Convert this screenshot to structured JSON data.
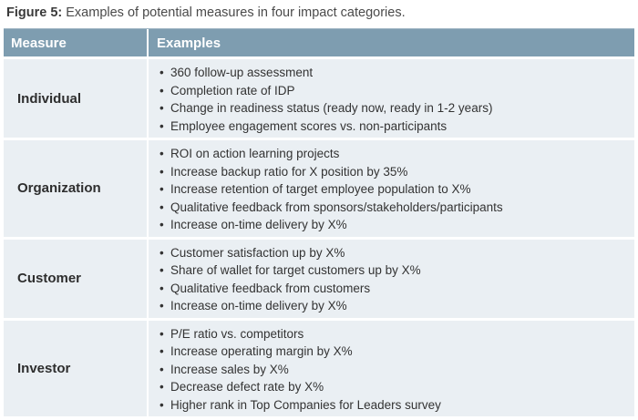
{
  "caption": {
    "label": "Figure 5:",
    "text": " Examples of potential measures in four impact categories."
  },
  "table": {
    "headers": {
      "measure": "Measure",
      "examples": "Examples"
    },
    "bullet": "•",
    "rows": [
      {
        "measure": "Individual",
        "examples": [
          "360 follow-up assessment",
          "Completion rate of IDP",
          "Change in readiness status (ready now, ready in 1-2 years)",
          "Employee engagement scores vs. non-participants"
        ]
      },
      {
        "measure": "Organization",
        "examples": [
          "ROI on action learning projects",
          "Increase backup ratio for X position by 35%",
          "Increase retention of target employee population to X%",
          "Qualitative feedback from sponsors/stakeholders/participants",
          "Increase on-time delivery by X%"
        ]
      },
      {
        "measure": "Customer",
        "examples": [
          "Customer satisfaction up by X%",
          "Share of wallet for target customers up by X%",
          "Qualitative feedback from customers",
          "Increase on-time delivery by X%"
        ]
      },
      {
        "measure": "Investor",
        "examples": [
          "P/E ratio vs. competitors",
          "Increase operating margin by X%",
          "Increase sales by X%",
          "Decrease defect rate by X%",
          "Higher rank in Top Companies for Leaders survey"
        ]
      }
    ]
  }
}
